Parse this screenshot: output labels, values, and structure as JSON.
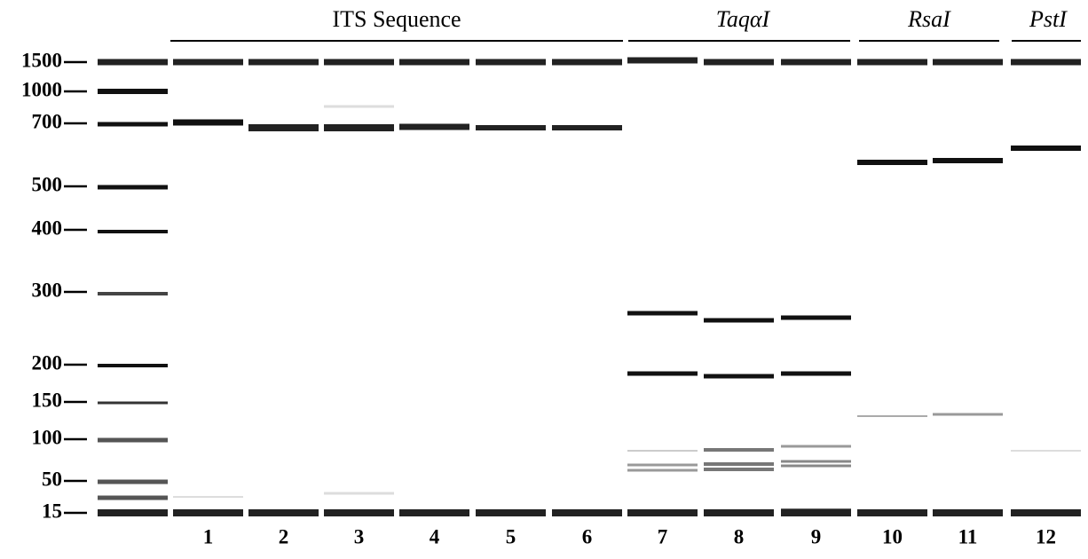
{
  "groups": [
    {
      "label": "ITS Sequence"
    },
    {
      "label": "TaqαI"
    },
    {
      "label": "RsaI"
    },
    {
      "label": "PstI"
    }
  ],
  "markers": [
    "1500",
    "1000",
    "700",
    "500",
    "400",
    "300",
    "200",
    "150",
    "100",
    "50",
    "15"
  ],
  "lanes": [
    "1",
    "2",
    "3",
    "4",
    "5",
    "6",
    "7",
    "8",
    "9",
    "10",
    "11",
    "12"
  ]
}
